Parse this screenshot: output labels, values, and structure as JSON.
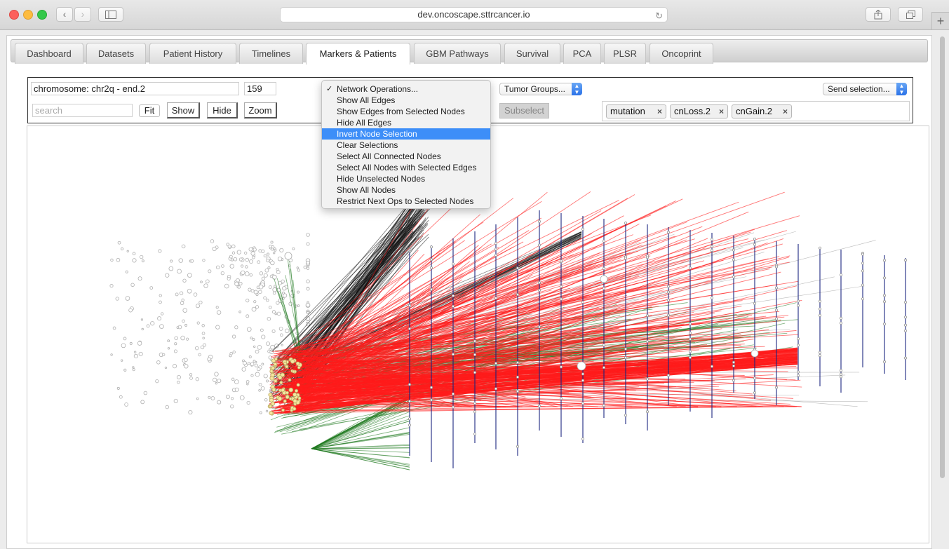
{
  "browser": {
    "url": "dev.oncoscape.sttrcancer.io",
    "back_glyph": "‹",
    "forward_glyph": "›",
    "new_tab_glyph": "+"
  },
  "tabs": [
    {
      "label": "Dashboard",
      "active": false
    },
    {
      "label": "Datasets",
      "active": false
    },
    {
      "label": "Patient History",
      "active": false
    },
    {
      "label": "Timelines",
      "active": false
    },
    {
      "label": "Markers & Patients",
      "active": true
    },
    {
      "label": "GBM Pathways",
      "active": false
    },
    {
      "label": "Survival",
      "active": false
    },
    {
      "label": "PCA",
      "active": false
    },
    {
      "label": "PLSR",
      "active": false
    },
    {
      "label": "Oncoprint",
      "active": false
    }
  ],
  "toolbar": {
    "chromosome_value": "chromosome: chr2q - end.2",
    "count_value": "159",
    "search_placeholder": "search",
    "fit_label": "Fit",
    "show_label": "Show",
    "hide_label": "Hide",
    "zoom_label": "Zoom",
    "tumor_groups_label": "Tumor Groups...",
    "send_selection_label": "Send selection...",
    "subselect_label": "Subselect",
    "tags": [
      {
        "label": "mutation",
        "remove": "×"
      },
      {
        "label": "cnLoss.2",
        "remove": "×"
      },
      {
        "label": "cnGain.2",
        "remove": "×"
      }
    ]
  },
  "network_menu": {
    "items": [
      {
        "label": "Network Operations...",
        "checked": true,
        "highlighted": false
      },
      {
        "label": "Show All Edges",
        "checked": false,
        "highlighted": false
      },
      {
        "label": "Show Edges from Selected Nodes",
        "checked": false,
        "highlighted": false
      },
      {
        "label": "Hide All Edges",
        "checked": false,
        "highlighted": false
      },
      {
        "label": "Invert Node Selection",
        "checked": false,
        "highlighted": true
      },
      {
        "label": "Clear Selections",
        "checked": false,
        "highlighted": false
      },
      {
        "label": "Select All Connected Nodes",
        "checked": false,
        "highlighted": false
      },
      {
        "label": "Select All Nodes with Selected Edges",
        "checked": false,
        "highlighted": false
      },
      {
        "label": "Hide Unselected Nodes",
        "checked": false,
        "highlighted": false
      },
      {
        "label": "Show All Nodes",
        "checked": false,
        "highlighted": false
      },
      {
        "label": "Restrict Next Ops to Selected Nodes",
        "checked": false,
        "highlighted": false
      }
    ],
    "check_glyph": "✓"
  },
  "network_colors": {
    "cnGain": "#ff1a1a",
    "cnLoss": "#1f7a1f",
    "mutation": "#111111",
    "chromosome": "#1a237e",
    "patient_node": "#f5e6a0",
    "node_outline": "#b0b0b0",
    "menu_highlight": "#3d8ef8"
  }
}
